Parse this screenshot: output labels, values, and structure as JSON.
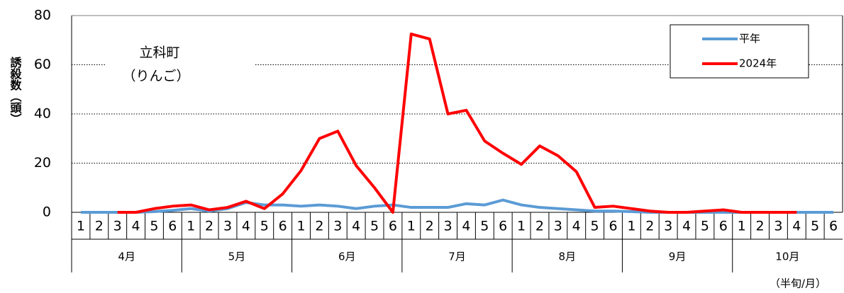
{
  "chart_data": {
    "type": "line",
    "y_label": "誘殺数（頭）",
    "annotations": [
      "立科町",
      "（りんご）"
    ],
    "x_label": "（半旬/月）",
    "categories": [
      "1",
      "2",
      "3",
      "4",
      "5",
      "6",
      "1",
      "2",
      "3",
      "4",
      "5",
      "6",
      "1",
      "2",
      "3",
      "4",
      "5",
      "6",
      "1",
      "2",
      "3",
      "4",
      "5",
      "6",
      "1",
      "2",
      "3",
      "4",
      "5",
      "6",
      "1",
      "2",
      "3",
      "4",
      "5",
      "6",
      "1",
      "2",
      "3",
      "4",
      "5",
      "6"
    ],
    "groups": [
      "4月",
      "5月",
      "6月",
      "7月",
      "8月",
      "9月",
      "10月"
    ],
    "series": [
      {
        "name": "平年",
        "color": "#5b9bd5",
        "values": [
          0,
          0,
          0,
          0,
          0.3,
          0.8,
          1.5,
          0.5,
          1.5,
          4,
          3,
          3,
          2.5,
          3,
          2.5,
          1.5,
          2.5,
          3,
          2,
          2,
          2,
          3.5,
          3,
          5,
          3,
          2,
          1.5,
          1,
          0.5,
          0.5,
          0.3,
          0,
          0,
          0,
          0,
          0,
          0,
          0,
          0,
          0,
          0,
          0
        ]
      },
      {
        "name": "2024年",
        "color": "#ff0000",
        "values": [
          null,
          null,
          0,
          0,
          1.5,
          2.5,
          3,
          1,
          2,
          4.5,
          1.5,
          7.5,
          17,
          30,
          33,
          19,
          10,
          0,
          72.5,
          70.5,
          40,
          41.5,
          29,
          24,
          19.5,
          27,
          23,
          16.5,
          2,
          2.5,
          1.5,
          0.5,
          0,
          0,
          0.5,
          1,
          0,
          0,
          0,
          0,
          null,
          null
        ]
      }
    ],
    "ylim": [
      0,
      80
    ],
    "yticks": [
      0,
      20,
      40,
      60,
      80
    ],
    "grid": true
  }
}
